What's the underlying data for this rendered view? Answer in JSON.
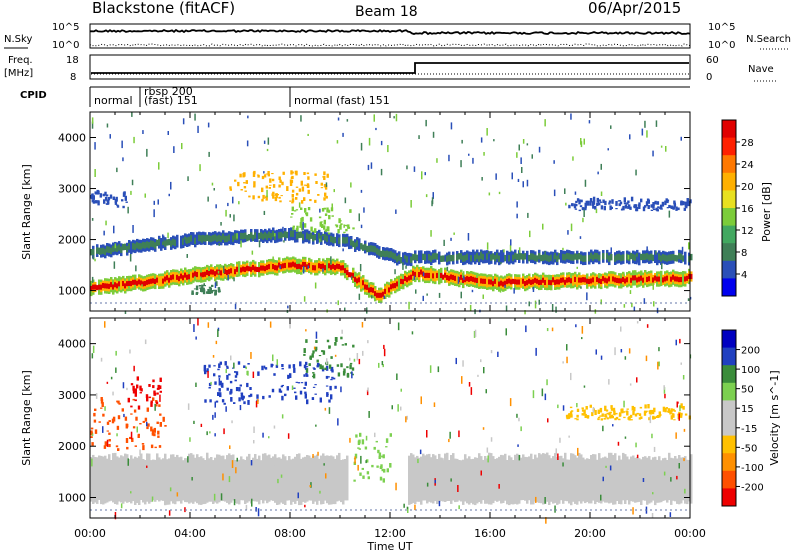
{
  "header": {
    "station": "Blackstone (fitACF)",
    "beam": "Beam 18",
    "date": "06/Apr/2015"
  },
  "noise_panel": {
    "left_label": "N.Sky",
    "right_label": "N.Search",
    "left_ticks": [
      "10^5",
      "10^0"
    ],
    "right_ticks": [
      "10^5",
      "10^0"
    ]
  },
  "freq_panel": {
    "left_label_1": "Freq.",
    "left_label_2": "[MHz]",
    "left_ticks": [
      "18",
      "8"
    ],
    "right_label": "Nave",
    "right_ticks": [
      "60",
      "0"
    ]
  },
  "cpid_panel": {
    "label": "CPID",
    "segments": [
      {
        "start": 0.0,
        "text": "normal"
      },
      {
        "start": 2.0,
        "text": "rbsp 200",
        "text2": "(fast) 151"
      },
      {
        "start": 8.0,
        "text": "normal (fast)  151"
      }
    ]
  },
  "colors": {
    "power_scale": [
      "#0000ee",
      "#2a4fb8",
      "#3f7f57",
      "#42a860",
      "#7ccc3a",
      "#e8e020",
      "#ffb000",
      "#ff7800",
      "#ff2000",
      "#e00000"
    ],
    "velocity_scale": [
      "#ee0000",
      "#ff5000",
      "#ff9000",
      "#ffc000",
      "#c8c8c8",
      "#c8c8c8",
      "#7cd050",
      "#3a8c3a",
      "#2040c0",
      "#0000c0"
    ]
  },
  "chart_data": [
    {
      "type": "heatmap",
      "title": "Power",
      "xlabel": "Time UT",
      "ylabel": "Slant Range [km]",
      "x_ticks": [
        "00:00",
        "04:00",
        "08:00",
        "12:00",
        "16:00",
        "20:00",
        "00:00"
      ],
      "xlim": [
        0,
        24
      ],
      "ylim": [
        600,
        4500
      ],
      "y_ticks": [
        1000,
        2000,
        3000,
        4000
      ],
      "colorbar_label": "Power [dB]",
      "colorbar_ticks": [
        "4",
        "8",
        "12",
        "16",
        "20",
        "24",
        "28"
      ],
      "bands": [
        {
          "t": [
            0,
            2,
            4,
            6,
            8,
            10,
            11.5,
            13,
            16,
            20,
            24
          ],
          "r": [
            1050,
            1150,
            1300,
            1400,
            1500,
            1450,
            900,
            1350,
            1150,
            1200,
            1250
          ],
          "width": 300,
          "levels": [
            28,
            20,
            12
          ]
        },
        {
          "t": [
            0,
            4,
            8,
            10,
            12.5,
            13,
            24
          ],
          "r": [
            1750,
            2000,
            2100,
            2000,
            1600,
            1650,
            1650
          ],
          "width": 250,
          "levels": [
            8,
            4
          ]
        }
      ],
      "patches": [
        {
          "t0": 5.5,
          "t1": 9.5,
          "r0": 2700,
          "r1": 3300,
          "level": 20
        },
        {
          "t0": 8.0,
          "t1": 10.5,
          "r0": 2100,
          "r1": 2600,
          "level": 12
        },
        {
          "t0": 0.0,
          "t1": 1.5,
          "r0": 2600,
          "r1": 2900,
          "level": 4
        },
        {
          "t0": 19.0,
          "t1": 24.0,
          "r0": 2550,
          "r1": 2750,
          "level": 4
        },
        {
          "t0": 4.0,
          "t1": 5.2,
          "r0": 900,
          "r1": 1100,
          "level": 8
        }
      ]
    },
    {
      "type": "heatmap",
      "title": "Velocity",
      "xlabel": "Time UT",
      "ylabel": "Slant Range [km]",
      "x_ticks": [
        "00:00",
        "04:00",
        "08:00",
        "12:00",
        "16:00",
        "20:00",
        "00:00"
      ],
      "xlim": [
        0,
        24
      ],
      "ylim": [
        600,
        4500
      ],
      "y_ticks": [
        1000,
        2000,
        3000,
        4000
      ],
      "colorbar_label": "Velocity [m s^-1]",
      "colorbar_ticks": [
        "-200",
        "-100",
        "-50",
        "-15",
        "15",
        "50",
        "100",
        "200"
      ],
      "ground_scatter_range": [
        900,
        1800
      ],
      "patches": [
        {
          "t0": 0.0,
          "t1": 3.0,
          "r0": 1900,
          "r1": 2900,
          "level": -100
        },
        {
          "t0": 1.5,
          "t1": 2.8,
          "r0": 2700,
          "r1": 3300,
          "level": -200
        },
        {
          "t0": 4.5,
          "t1": 9.8,
          "r0": 2800,
          "r1": 3600,
          "level": 200
        },
        {
          "t0": 8.5,
          "t1": 10.5,
          "r0": 3300,
          "r1": 4100,
          "level": 100
        },
        {
          "t0": 10.5,
          "t1": 12.0,
          "r0": 1200,
          "r1": 2200,
          "level": 50
        },
        {
          "t0": 19.0,
          "t1": 24.0,
          "r0": 2500,
          "r1": 2750,
          "level": -15
        }
      ]
    }
  ]
}
